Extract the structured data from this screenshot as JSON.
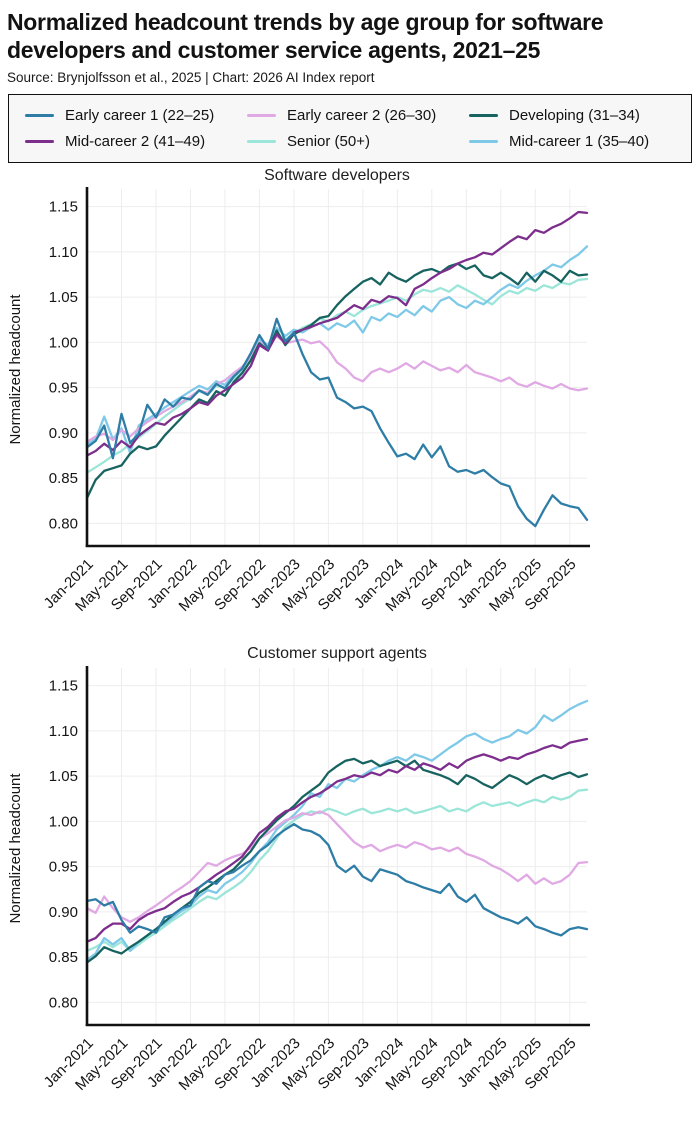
{
  "header": {
    "title": "Normalized headcount trends by age group for software developers and customer service agents, 2021–25",
    "source": "Source: Brynjolfsson et al., 2025 | Chart: 2026 AI Index report"
  },
  "legend": {
    "items": [
      {
        "label": "Early career 1 (22–25)",
        "color": "#2E7DA6"
      },
      {
        "label": "Early career 2 (26–30)",
        "color": "#E0A9E4"
      },
      {
        "label": "Developing (31–34)",
        "color": "#17635F"
      },
      {
        "label": "Mid-career 2 (41–49)",
        "color": "#7D2E8D"
      },
      {
        "label": "Senior (50+)",
        "color": "#9BE5D9"
      },
      {
        "label": "Mid-career 1 (35–40)",
        "color": "#7FC9E8"
      }
    ]
  },
  "colors": {
    "axis": "#111111",
    "grid": "#ededed",
    "legend_bg": "#f7f7f7",
    "tick_text": "#151515"
  },
  "chart_data": [
    {
      "type": "line",
      "title": "Software developers",
      "ylabel": "Normalized headcount",
      "ylim": [
        0.775,
        1.165
      ],
      "yticks": [
        0.8,
        0.85,
        0.9,
        0.95,
        1.0,
        1.05,
        1.1,
        1.15
      ],
      "x_tick_labels": [
        "Jan-2021",
        "May-2021",
        "Sep-2021",
        "Jan-2022",
        "May-2022",
        "Sep-2022",
        "Jan-2023",
        "May-2023",
        "Sep-2023",
        "Jan-2024",
        "May-2024",
        "Sep-2024",
        "Jan-2025",
        "May-2025",
        "Sep-2025"
      ],
      "x_tick_months": [
        0,
        4,
        8,
        12,
        16,
        20,
        24,
        28,
        32,
        36,
        40,
        44,
        48,
        52,
        56
      ],
      "months_total": 59,
      "grid": true,
      "legend_position": "top",
      "series": [
        {
          "name": "Senior (50+)",
          "color": "#9BE5D9",
          "values": [
            0.856,
            0.862,
            0.868,
            0.875,
            0.88,
            0.888,
            0.895,
            0.902,
            0.91,
            0.918,
            0.925,
            0.932,
            0.938,
            0.946,
            0.942,
            0.952,
            0.95,
            0.96,
            0.97,
            0.983,
            0.998,
            0.993,
            1.008,
            1.003,
            1.01,
            1.016,
            1.02,
            1.026,
            1.023,
            1.03,
            1.034,
            1.029,
            1.036,
            1.04,
            1.043,
            1.046,
            1.05,
            1.046,
            1.053,
            1.058,
            1.056,
            1.06,
            1.056,
            1.063,
            1.058,
            1.053,
            1.047,
            1.042,
            1.051,
            1.057,
            1.054,
            1.06,
            1.057,
            1.063,
            1.06,
            1.066,
            1.064,
            1.069,
            1.07
          ]
        },
        {
          "name": "Mid-career 1 (35–40)",
          "color": "#7FC9E8",
          "values": [
            0.887,
            0.893,
            0.918,
            0.893,
            0.905,
            0.878,
            0.908,
            0.915,
            0.921,
            0.928,
            0.934,
            0.94,
            0.946,
            0.952,
            0.948,
            0.957,
            0.953,
            0.964,
            0.972,
            0.985,
            1.003,
            0.997,
            1.016,
            1.007,
            1.014,
            1.011,
            1.017,
            1.021,
            1.014,
            1.021,
            1.017,
            1.024,
            1.011,
            1.028,
            1.024,
            1.032,
            1.028,
            1.036,
            1.03,
            1.04,
            1.034,
            1.046,
            1.05,
            1.042,
            1.038,
            1.046,
            1.042,
            1.05,
            1.058,
            1.064,
            1.06,
            1.068,
            1.074,
            1.079,
            1.086,
            1.083,
            1.091,
            1.097,
            1.106
          ]
        },
        {
          "name": "Early career 2 (26–30)",
          "color": "#E0A9E4",
          "values": [
            0.89,
            0.896,
            0.899,
            0.892,
            0.903,
            0.896,
            0.905,
            0.912,
            0.918,
            0.924,
            0.929,
            0.934,
            0.94,
            0.947,
            0.944,
            0.954,
            0.958,
            0.966,
            0.973,
            0.984,
            1.0,
            0.996,
            1.007,
            0.999,
            1.001,
            1.003,
            0.999,
            1.001,
            0.992,
            0.978,
            0.971,
            0.961,
            0.957,
            0.967,
            0.971,
            0.967,
            0.971,
            0.977,
            0.971,
            0.979,
            0.974,
            0.969,
            0.972,
            0.967,
            0.975,
            0.967,
            0.964,
            0.961,
            0.957,
            0.961,
            0.954,
            0.951,
            0.956,
            0.952,
            0.949,
            0.954,
            0.949,
            0.947,
            0.949
          ]
        },
        {
          "name": "Developing (31–34)",
          "color": "#17635F",
          "values": [
            0.828,
            0.848,
            0.858,
            0.861,
            0.864,
            0.877,
            0.885,
            0.882,
            0.885,
            0.897,
            0.907,
            0.917,
            0.927,
            0.937,
            0.933,
            0.946,
            0.941,
            0.956,
            0.966,
            0.98,
            0.999,
            0.991,
            1.013,
            0.997,
            1.009,
            1.014,
            1.019,
            1.027,
            1.029,
            1.041,
            1.051,
            1.059,
            1.067,
            1.071,
            1.064,
            1.077,
            1.071,
            1.067,
            1.074,
            1.079,
            1.081,
            1.077,
            1.084,
            1.087,
            1.081,
            1.085,
            1.074,
            1.071,
            1.077,
            1.071,
            1.064,
            1.077,
            1.067,
            1.079,
            1.074,
            1.067,
            1.079,
            1.074,
            1.075
          ]
        },
        {
          "name": "Mid-career 2 (41–49)",
          "color": "#7D2E8D",
          "values": [
            0.875,
            0.88,
            0.888,
            0.881,
            0.891,
            0.884,
            0.897,
            0.904,
            0.911,
            0.909,
            0.917,
            0.921,
            0.927,
            0.934,
            0.931,
            0.941,
            0.947,
            0.954,
            0.961,
            0.974,
            0.997,
            0.991,
            1.009,
            0.999,
            1.011,
            1.014,
            1.017,
            1.021,
            1.024,
            1.027,
            1.034,
            1.041,
            1.037,
            1.047,
            1.044,
            1.051,
            1.049,
            1.041,
            1.059,
            1.064,
            1.071,
            1.077,
            1.081,
            1.087,
            1.091,
            1.094,
            1.099,
            1.097,
            1.104,
            1.111,
            1.117,
            1.114,
            1.124,
            1.121,
            1.127,
            1.131,
            1.137,
            1.144,
            1.143
          ]
        },
        {
          "name": "Early career 1 (22–25)",
          "color": "#2E7DA6",
          "values": [
            0.884,
            0.891,
            0.908,
            0.872,
            0.921,
            0.889,
            0.899,
            0.931,
            0.917,
            0.937,
            0.929,
            0.939,
            0.937,
            0.947,
            0.942,
            0.954,
            0.949,
            0.962,
            0.971,
            0.988,
            1.008,
            0.993,
            1.026,
            1.001,
            1.011,
            0.987,
            0.967,
            0.959,
            0.961,
            0.939,
            0.934,
            0.927,
            0.929,
            0.924,
            0.905,
            0.889,
            0.874,
            0.877,
            0.871,
            0.887,
            0.873,
            0.885,
            0.863,
            0.857,
            0.859,
            0.855,
            0.859,
            0.851,
            0.844,
            0.841,
            0.819,
            0.805,
            0.797,
            0.815,
            0.831,
            0.822,
            0.819,
            0.817,
            0.804
          ]
        }
      ]
    },
    {
      "type": "line",
      "title": "Customer support agents",
      "ylabel": "Normalized headcount",
      "ylim": [
        0.775,
        1.165
      ],
      "yticks": [
        0.8,
        0.85,
        0.9,
        0.95,
        1.0,
        1.05,
        1.1,
        1.15
      ],
      "x_tick_labels": [
        "Jan-2021",
        "May-2021",
        "Sep-2021",
        "Jan-2022",
        "May-2022",
        "Sep-2022",
        "Jan-2023",
        "May-2023",
        "Sep-2023",
        "Jan-2024",
        "May-2024",
        "Sep-2024",
        "Jan-2025",
        "May-2025",
        "Sep-2025"
      ],
      "x_tick_months": [
        0,
        4,
        8,
        12,
        16,
        20,
        24,
        28,
        32,
        36,
        40,
        44,
        48,
        52,
        56
      ],
      "months_total": 59,
      "grid": true,
      "legend_position": "top",
      "series": [
        {
          "name": "Senior (50+)",
          "color": "#9BE5D9",
          "values": [
            0.857,
            0.861,
            0.867,
            0.861,
            0.867,
            0.857,
            0.864,
            0.871,
            0.877,
            0.884,
            0.891,
            0.897,
            0.904,
            0.911,
            0.917,
            0.914,
            0.921,
            0.927,
            0.934,
            0.944,
            0.957,
            0.967,
            0.981,
            0.994,
            1.001,
            1.007,
            1.011,
            1.009,
            1.014,
            1.011,
            1.007,
            1.011,
            1.014,
            1.009,
            1.011,
            1.014,
            1.011,
            1.014,
            1.009,
            1.011,
            1.014,
            1.017,
            1.011,
            1.014,
            1.011,
            1.017,
            1.021,
            1.017,
            1.019,
            1.021,
            1.017,
            1.021,
            1.024,
            1.021,
            1.027,
            1.024,
            1.027,
            1.034,
            1.035
          ]
        },
        {
          "name": "Mid-career 1 (35–40)",
          "color": "#7FC9E8",
          "values": [
            0.847,
            0.854,
            0.871,
            0.864,
            0.871,
            0.857,
            0.867,
            0.874,
            0.881,
            0.887,
            0.894,
            0.901,
            0.907,
            0.917,
            0.924,
            0.921,
            0.931,
            0.937,
            0.944,
            0.954,
            0.967,
            0.977,
            0.991,
            0.999,
            1.007,
            1.017,
            1.031,
            1.027,
            1.041,
            1.037,
            1.047,
            1.044,
            1.051,
            1.057,
            1.061,
            1.067,
            1.071,
            1.067,
            1.074,
            1.071,
            1.067,
            1.074,
            1.081,
            1.087,
            1.094,
            1.097,
            1.091,
            1.087,
            1.091,
            1.094,
            1.101,
            1.097,
            1.104,
            1.117,
            1.111,
            1.117,
            1.124,
            1.129,
            1.133
          ]
        },
        {
          "name": "Early career 2 (26–30)",
          "color": "#E0A9E4",
          "values": [
            0.904,
            0.899,
            0.917,
            0.904,
            0.894,
            0.889,
            0.894,
            0.901,
            0.907,
            0.914,
            0.921,
            0.927,
            0.934,
            0.944,
            0.954,
            0.951,
            0.957,
            0.961,
            0.964,
            0.971,
            0.981,
            0.987,
            0.994,
            1.001,
            1.004,
            1.009,
            1.007,
            1.011,
            1.007,
            0.997,
            0.987,
            0.977,
            0.971,
            0.974,
            0.967,
            0.971,
            0.974,
            0.971,
            0.977,
            0.974,
            0.969,
            0.971,
            0.967,
            0.971,
            0.964,
            0.961,
            0.957,
            0.951,
            0.947,
            0.941,
            0.934,
            0.941,
            0.931,
            0.937,
            0.931,
            0.934,
            0.941,
            0.954,
            0.955
          ]
        },
        {
          "name": "Developing (31–34)",
          "color": "#17635F",
          "values": [
            0.844,
            0.851,
            0.861,
            0.857,
            0.854,
            0.861,
            0.867,
            0.874,
            0.881,
            0.889,
            0.897,
            0.904,
            0.911,
            0.921,
            0.927,
            0.934,
            0.941,
            0.947,
            0.957,
            0.967,
            0.981,
            0.991,
            1.001,
            1.009,
            1.017,
            1.027,
            1.034,
            1.041,
            1.054,
            1.061,
            1.067,
            1.069,
            1.064,
            1.067,
            1.061,
            1.064,
            1.067,
            1.061,
            1.067,
            1.057,
            1.054,
            1.051,
            1.047,
            1.041,
            1.051,
            1.047,
            1.041,
            1.037,
            1.044,
            1.051,
            1.047,
            1.041,
            1.047,
            1.051,
            1.047,
            1.051,
            1.054,
            1.049,
            1.052
          ]
        },
        {
          "name": "Mid-career 2 (41–49)",
          "color": "#7D2E8D",
          "values": [
            0.867,
            0.871,
            0.881,
            0.887,
            0.887,
            0.881,
            0.891,
            0.897,
            0.901,
            0.904,
            0.911,
            0.917,
            0.921,
            0.927,
            0.934,
            0.941,
            0.947,
            0.954,
            0.961,
            0.974,
            0.987,
            0.994,
            1.004,
            1.011,
            1.014,
            1.021,
            1.027,
            1.031,
            1.037,
            1.044,
            1.047,
            1.051,
            1.049,
            1.054,
            1.051,
            1.057,
            1.054,
            1.061,
            1.057,
            1.064,
            1.061,
            1.057,
            1.064,
            1.059,
            1.067,
            1.071,
            1.074,
            1.071,
            1.067,
            1.071,
            1.069,
            1.074,
            1.077,
            1.081,
            1.084,
            1.081,
            1.087,
            1.089,
            1.091
          ]
        },
        {
          "name": "Early career 1 (22–25)",
          "color": "#2E7DA6",
          "values": [
            0.912,
            0.914,
            0.907,
            0.911,
            0.891,
            0.877,
            0.884,
            0.881,
            0.877,
            0.894,
            0.897,
            0.904,
            0.907,
            0.927,
            0.934,
            0.931,
            0.941,
            0.944,
            0.951,
            0.957,
            0.967,
            0.974,
            0.984,
            0.991,
            0.997,
            0.991,
            0.989,
            0.984,
            0.974,
            0.951,
            0.944,
            0.951,
            0.939,
            0.934,
            0.947,
            0.944,
            0.941,
            0.934,
            0.931,
            0.927,
            0.924,
            0.921,
            0.931,
            0.917,
            0.911,
            0.919,
            0.904,
            0.899,
            0.894,
            0.891,
            0.887,
            0.894,
            0.884,
            0.881,
            0.877,
            0.874,
            0.881,
            0.883,
            0.881
          ]
        }
      ]
    }
  ]
}
